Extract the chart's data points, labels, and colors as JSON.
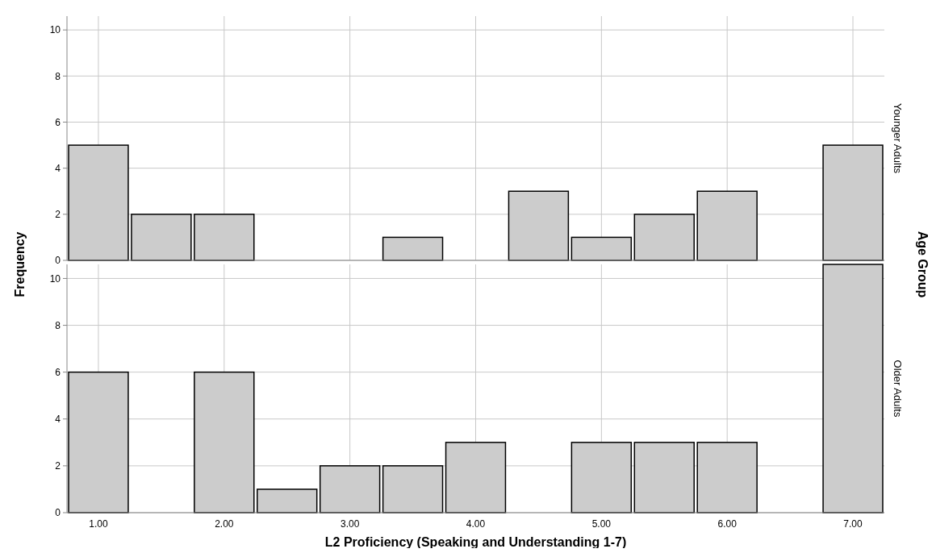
{
  "chart_data": [
    {
      "type": "histogram",
      "ylabel": "Frequency",
      "y2label": "Younger Adults",
      "bins": [
        0.75,
        1.25,
        1.75,
        2.25,
        2.75,
        3.25,
        3.75,
        4.25,
        4.75,
        5.25,
        5.75,
        6.25,
        6.75,
        7.25
      ],
      "values": [
        5,
        2,
        2,
        0,
        0,
        1,
        0,
        3,
        1,
        2,
        3,
        0,
        5
      ],
      "color": "#cccccc",
      "xlim": [
        0.75,
        7.25
      ],
      "xticks": [
        {
          "value": 1,
          "label": null
        },
        {
          "value": 2,
          "label": null
        },
        {
          "value": 3,
          "label": null
        },
        {
          "value": 4,
          "label": null
        },
        {
          "value": 5,
          "label": null
        },
        {
          "value": 6,
          "label": null
        },
        {
          "value": 7,
          "label": null
        }
      ],
      "ylim": [
        0,
        10.6
      ],
      "yticks": [
        0,
        2,
        4,
        6,
        8,
        10
      ],
      "grid": true,
      "tick_labels": "y"
    },
    {
      "type": "histogram",
      "xlabel": "L2 Proficiency (Speaking and Understanding 1-7)",
      "y2label": "Older Adults",
      "annotations": [
        "Age Group"
      ],
      "bins": [
        0.75,
        1.25,
        1.75,
        2.25,
        2.75,
        3.25,
        3.75,
        4.25,
        4.75,
        5.25,
        5.75,
        6.25,
        6.75,
        7.25
      ],
      "values": [
        6,
        0,
        6,
        1,
        2,
        2,
        3,
        0,
        3,
        3,
        3,
        0,
        10.6
      ],
      "color": "#cccccc",
      "xlim": [
        0.75,
        7.25
      ],
      "xticks": [
        {
          "value": 1,
          "label": "1.00"
        },
        {
          "value": 2,
          "label": "2.00"
        },
        {
          "value": 3,
          "label": "3.00"
        },
        {
          "value": 4,
          "label": "4.00"
        },
        {
          "value": 5,
          "label": "5.00"
        },
        {
          "value": 6,
          "label": "6.00"
        },
        {
          "value": 7,
          "label": "7.00"
        }
      ],
      "ylim": [
        0,
        10.6
      ],
      "yticks": [
        0,
        2,
        4,
        6,
        8,
        10
      ],
      "grid": true
    }
  ]
}
